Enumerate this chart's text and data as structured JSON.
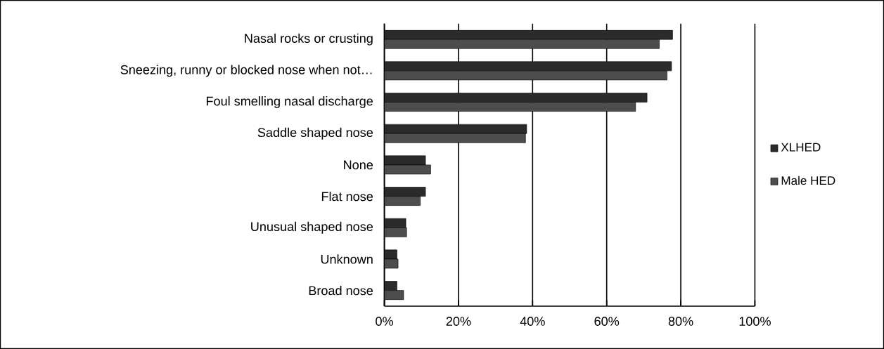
{
  "chart_data": {
    "type": "bar",
    "orientation": "horizontal",
    "categories": [
      "Nasal rocks or crusting",
      "Sneezing, runny or blocked nose when not…",
      "Foul smelling nasal discharge",
      "Saddle shaped nose",
      "None",
      "Flat nose",
      "Unusual shaped nose",
      "Unknown",
      "Broad nose"
    ],
    "series": [
      {
        "name": "XLHED",
        "color": "#2b2b2b",
        "values": [
          77.8,
          77.5,
          70.9,
          38.4,
          11.1,
          11.1,
          5.8,
          3.4,
          3.4
        ]
      },
      {
        "name": "Male HED",
        "color": "#4d4d4d",
        "values": [
          74.2,
          76.3,
          67.8,
          38.1,
          12.5,
          9.7,
          6.0,
          3.7,
          5.2
        ]
      }
    ],
    "xlim": [
      0,
      100
    ],
    "xticks": [
      {
        "value": 0,
        "label": "0%"
      },
      {
        "value": 20,
        "label": "20%"
      },
      {
        "value": 40,
        "label": "40%"
      },
      {
        "value": 60,
        "label": "60%"
      },
      {
        "value": 80,
        "label": "80%"
      },
      {
        "value": 100,
        "label": "100%"
      }
    ],
    "grid": "x",
    "legend": "right"
  }
}
